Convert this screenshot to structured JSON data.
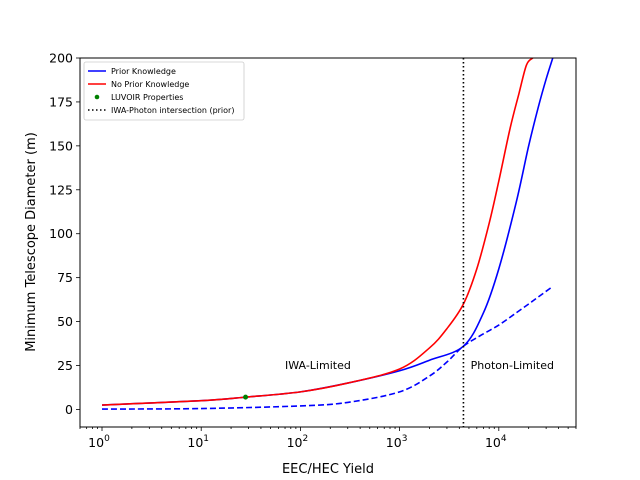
{
  "chart_data": {
    "type": "line",
    "xscale": "log",
    "xlabel": "EEC/HEC Yield",
    "ylabel": "Minimum Telescope Diameter (m)",
    "xlim": [
      0.6,
      60000
    ],
    "ylim": [
      -10,
      200
    ],
    "x_ticks": [
      {
        "value": 1,
        "base": "10",
        "exp": "0"
      },
      {
        "value": 10,
        "base": "10",
        "exp": "1"
      },
      {
        "value": 100,
        "base": "10",
        "exp": "2"
      },
      {
        "value": 1000,
        "base": "10",
        "exp": "3"
      },
      {
        "value": 10000,
        "base": "10",
        "exp": "4"
      }
    ],
    "y_ticks": [
      {
        "value": 0,
        "label": "0"
      },
      {
        "value": 25,
        "label": "25"
      },
      {
        "value": 50,
        "label": "50"
      },
      {
        "value": 75,
        "label": "75"
      },
      {
        "value": 100,
        "label": "100"
      },
      {
        "value": 125,
        "label": "125"
      },
      {
        "value": 150,
        "label": "150"
      },
      {
        "value": 175,
        "label": "175"
      },
      {
        "value": 200,
        "label": "200"
      }
    ],
    "grid": false,
    "legend_position": "top-left",
    "series": [
      {
        "name": "Prior Knowledge",
        "color": "#0000ff",
        "style": "solid",
        "x": [
          1,
          10,
          28,
          100,
          300,
          1000,
          2000,
          4400,
          7000,
          10000,
          15000,
          20000,
          25000,
          30000,
          35000
        ],
        "y": [
          2.5,
          5,
          7,
          10,
          15,
          22,
          28,
          36,
          55,
          80,
          118,
          150,
          172,
          188,
          200
        ]
      },
      {
        "name": "No Prior Knowledge",
        "color": "#ff0000",
        "style": "solid",
        "x": [
          1,
          10,
          28,
          100,
          300,
          1000,
          2000,
          3000,
          4400,
          6000,
          8000,
          10000,
          13000,
          16000,
          19000,
          22000
        ],
        "y": [
          2.5,
          5,
          7,
          10,
          15,
          23,
          35,
          46,
          60,
          80,
          106,
          130,
          160,
          180,
          196,
          200
        ]
      },
      {
        "name": "",
        "color": "#0000ff",
        "style": "dashed",
        "x": [
          1,
          10,
          100,
          300,
          1000,
          2000,
          3000,
          4400,
          7000,
          10000,
          15000,
          20000,
          25000,
          35000
        ],
        "y": [
          0.2,
          0.5,
          2,
          4,
          10,
          19,
          27,
          36,
          43,
          48,
          55,
          60,
          64,
          70
        ]
      },
      {
        "name": "IWA-Photon intersection (prior)",
        "color": "#000000",
        "style": "dotted",
        "vertical_x": 4400
      }
    ],
    "scatter": [
      {
        "name": "LUVOIR Properties",
        "color": "#008000",
        "x": 28,
        "y": 7
      }
    ],
    "annotations": [
      {
        "text": "IWA-Limited",
        "x": 70,
        "y": 23
      },
      {
        "text": "Photon-Limited",
        "x": 5200,
        "y": 23
      }
    ]
  }
}
